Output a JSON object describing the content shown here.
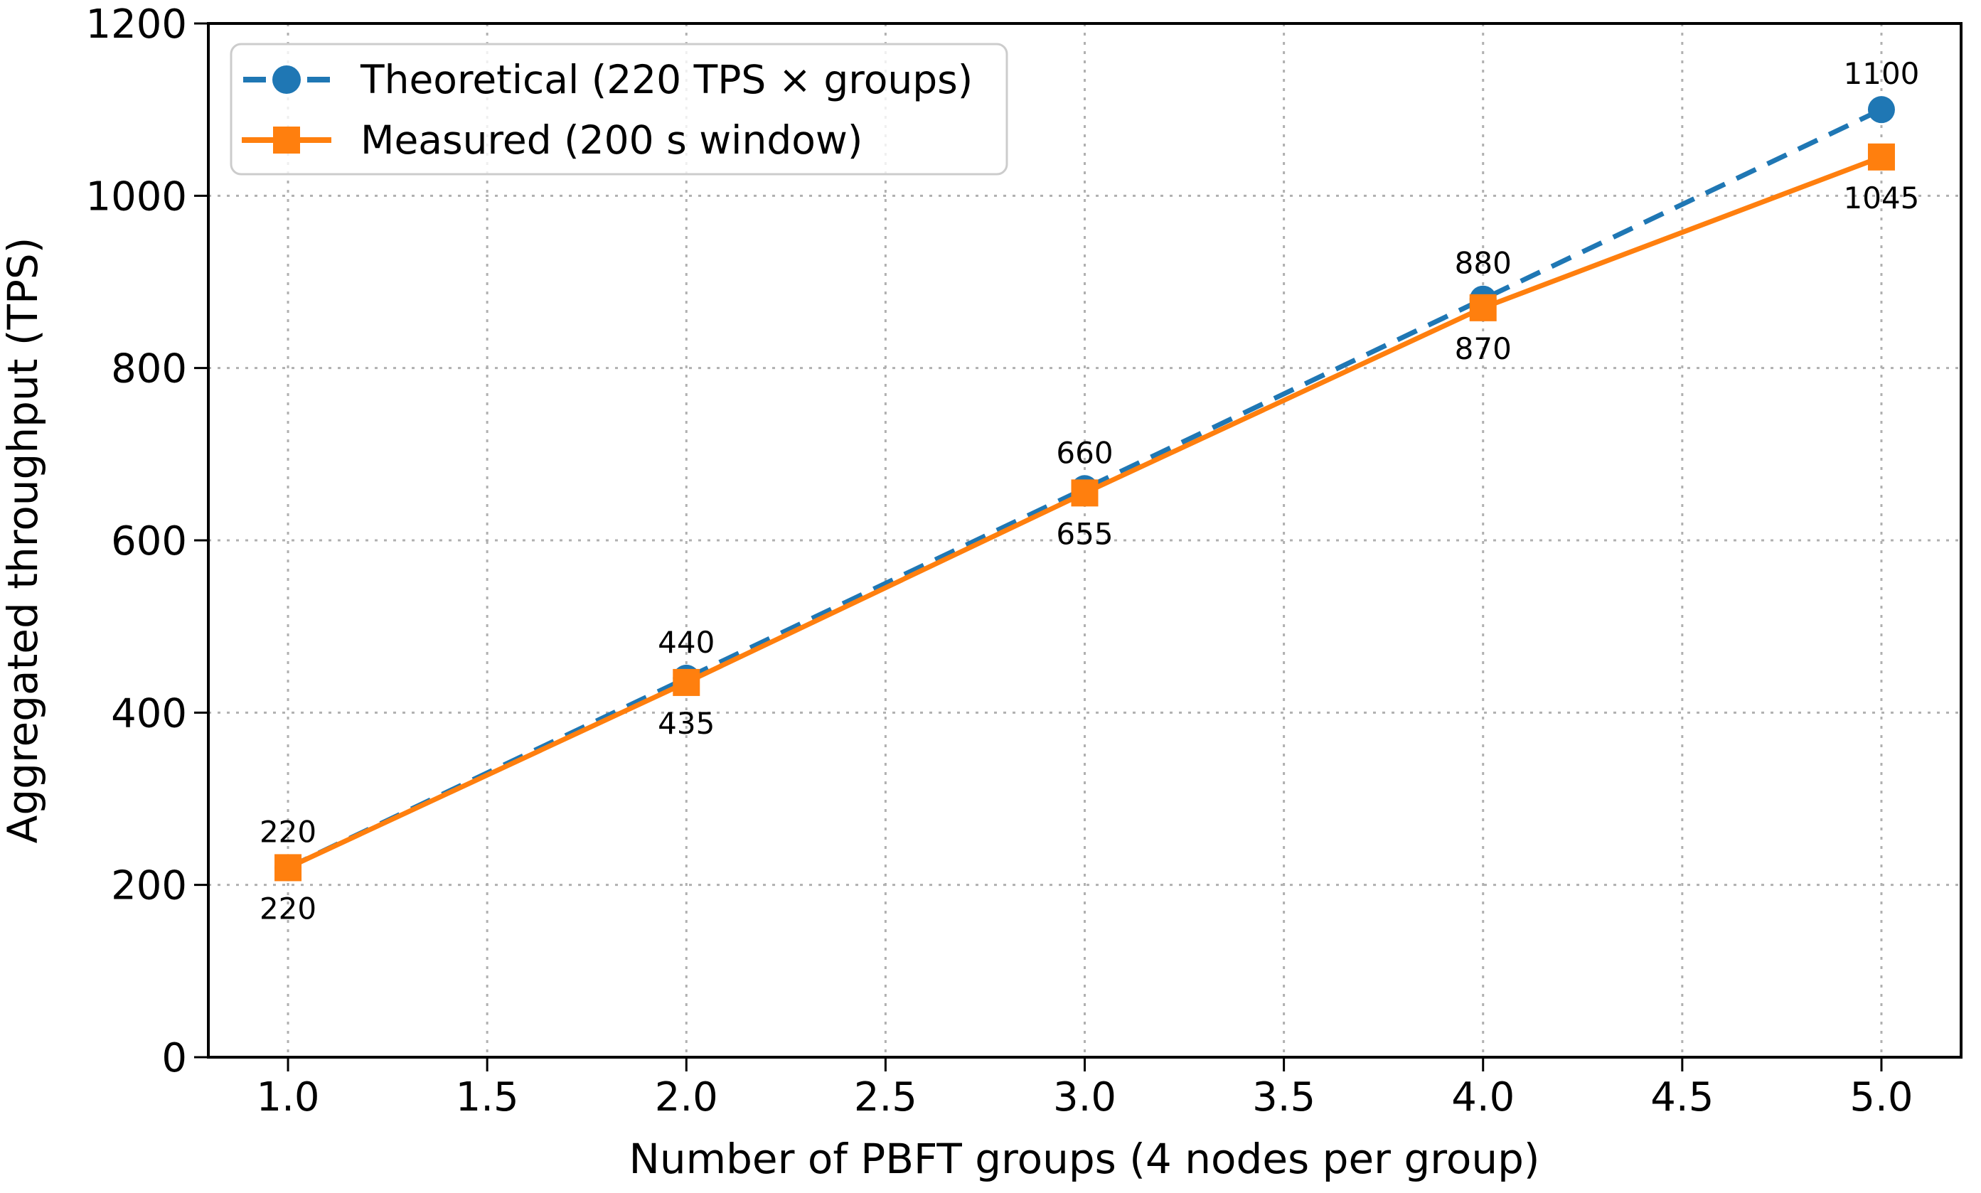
{
  "figure": {
    "background": "#ffffff"
  },
  "chart_data": {
    "type": "line",
    "title": "",
    "xlabel": "Number of PBFT groups (4 nodes per group)",
    "ylabel": "Aggregated throughput (TPS)",
    "xlim": [
      0.8,
      5.2
    ],
    "ylim": [
      0,
      1200
    ],
    "grid": "dotted",
    "grid_color": "#b0b0b0",
    "axis_color": "#000000",
    "text_color": "#000000",
    "legend_position": "upper left",
    "x": [
      1,
      2,
      3,
      4,
      5
    ],
    "x_ticks": [
      "1.0",
      "1.5",
      "2.0",
      "2.5",
      "3.0",
      "3.5",
      "4.0",
      "4.5",
      "5.0"
    ],
    "x_tick_values": [
      1,
      1.5,
      2,
      2.5,
      3,
      3.5,
      4,
      4.5,
      5
    ],
    "y_ticks": [
      "0",
      "200",
      "400",
      "600",
      "800",
      "1000",
      "1200"
    ],
    "y_tick_values": [
      0,
      200,
      400,
      600,
      800,
      1000,
      1200
    ],
    "series": [
      {
        "id": "theoretical",
        "name": "Theoretical (220 TPS × groups)",
        "color": "#1f77b4",
        "line_style": "dashed",
        "marker": "circle",
        "values": [
          220,
          440,
          660,
          880,
          1100
        ],
        "point_labels": [
          "220",
          "440",
          "660",
          "880",
          "1100"
        ],
        "label_position": "above"
      },
      {
        "id": "measured",
        "name": "Measured (200 s window)",
        "color": "#ff7f0e",
        "line_style": "solid",
        "marker": "square",
        "values": [
          220,
          435,
          655,
          870,
          1045
        ],
        "point_labels": [
          "220",
          "435",
          "655",
          "870",
          "1045"
        ],
        "label_position": "below"
      }
    ]
  }
}
